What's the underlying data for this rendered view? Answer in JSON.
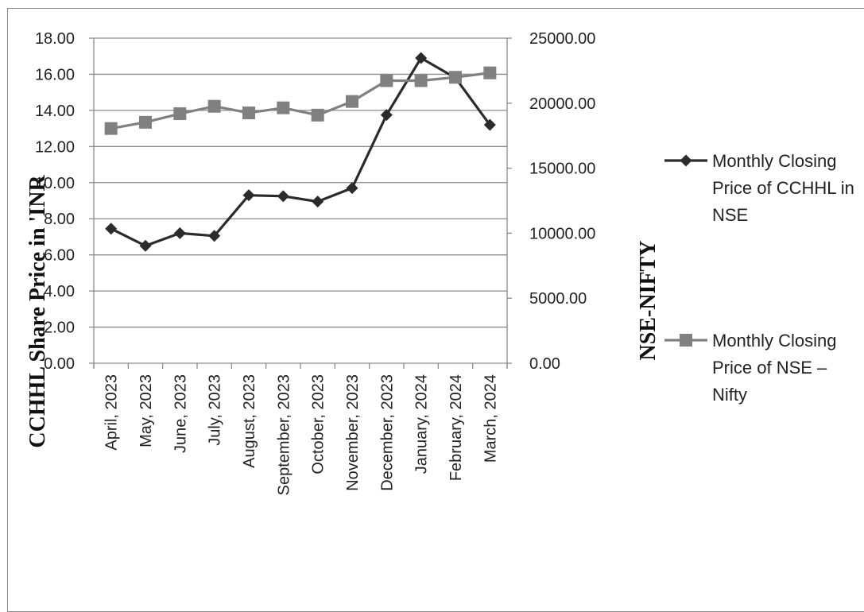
{
  "chart_data": {
    "type": "line",
    "dual_axis": true,
    "categories": [
      "April, 2023",
      "May, 2023",
      "June, 2023",
      "July, 2023",
      "August, 2023",
      "September, 2023",
      "October, 2023",
      "November, 2023",
      "December, 2023",
      "January, 2024",
      "February, 2024",
      "March, 2024"
    ],
    "ylabel_left": "CCHHL Share Price in 'INR",
    "ylabel_right": "NSE-NIFTY",
    "ylim_left": [
      0,
      18
    ],
    "ylim_right": [
      0,
      25000
    ],
    "yticks_left": [
      "0.00",
      "2.00",
      "4.00",
      "6.00",
      "8.00",
      "10.00",
      "12.00",
      "14.00",
      "16.00",
      "18.00"
    ],
    "yticks_right": [
      "0.00",
      "5000.00",
      "10000.00",
      "15000.00",
      "20000.00",
      "25000.00"
    ],
    "grid": "horizontal",
    "legend_position": "right",
    "series": [
      {
        "name": "Monthly Closing Price of CCHHL in NSE",
        "legend_lines": [
          "Monthly Closing",
          "Price of CCHHL in",
          "NSE"
        ],
        "axis": "left",
        "marker": "diamond",
        "color": "#2b2b2b",
        "values": [
          7.45,
          6.5,
          7.2,
          7.05,
          9.3,
          9.25,
          8.95,
          9.7,
          13.75,
          16.9,
          15.8,
          13.2
        ]
      },
      {
        "name": "Monthly Closing Price of NSE – Nifty",
        "legend_lines": [
          "Monthly Closing",
          "Price of NSE –",
          "Nifty"
        ],
        "axis": "right",
        "marker": "square",
        "color": "#808080",
        "values": [
          18050,
          18530,
          19190,
          19760,
          19250,
          19640,
          19080,
          20130,
          21730,
          21730,
          21990,
          22330
        ]
      }
    ]
  }
}
